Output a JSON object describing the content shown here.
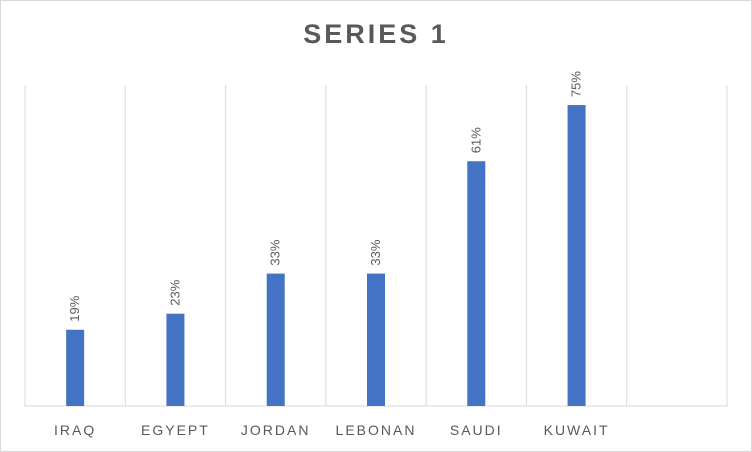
{
  "chart_data": {
    "type": "bar",
    "title": "SERIES 1",
    "categories": [
      "IRAQ",
      "EGYEPT",
      "JORDAN",
      "LEBONAN",
      "SAUDI",
      "KUWAIT",
      ""
    ],
    "values": [
      19,
      23,
      33,
      33,
      61,
      75,
      null
    ],
    "data_labels": [
      "19%",
      "23%",
      "33%",
      "33%",
      "61%",
      "75%",
      ""
    ],
    "ylim": [
      0,
      80
    ],
    "grid": "vertical category separators",
    "legend": "none",
    "colors": {
      "bar": "#4472c4",
      "grid": "#d9d9d9",
      "text": "#595959"
    }
  }
}
